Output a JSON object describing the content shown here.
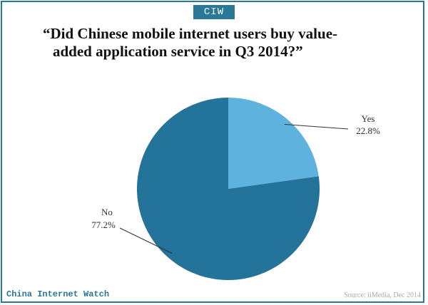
{
  "badge": "CIW",
  "colors": {
    "accent": "#2a7898",
    "yes": "#5db3de",
    "no": "#23739a"
  },
  "chart_data": {
    "type": "pie",
    "title_lines": [
      "“Did Chinese mobile internet users buy value-",
      "added application service in Q3 2014?”"
    ],
    "slices": [
      {
        "label": "Yes",
        "value": 22.8,
        "value_label": "22.8%",
        "color": "#5db3de"
      },
      {
        "label": "No",
        "value": 77.2,
        "value_label": "77.2%",
        "color": "#23739a"
      }
    ],
    "start_angle": "12 o'clock",
    "direction": "clockwise"
  },
  "footer": {
    "brand": "China Internet Watch",
    "source": "Source: iiMedia, Dec 2014"
  }
}
